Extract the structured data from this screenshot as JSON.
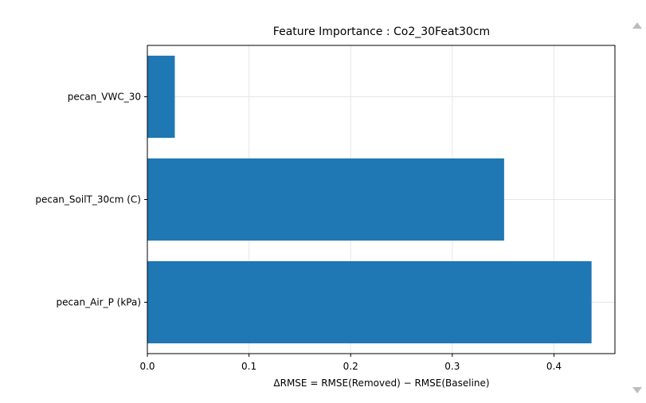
{
  "chart_data": {
    "type": "bar",
    "orientation": "horizontal",
    "title": "Feature Importance : Co2_30Feat30cm",
    "xlabel": "ΔRMSE = RMSE(Removed) − RMSE(Baseline)",
    "ylabel": "",
    "categories": [
      "pecan_VWC_30",
      "pecan_SoilT_30cm (C)",
      "pecan_Air_P (kPa)"
    ],
    "values": [
      0.027,
      0.351,
      0.437
    ],
    "xlim": [
      0.0,
      0.46
    ],
    "xticks": [
      0.0,
      0.1,
      0.2,
      0.3,
      0.4
    ],
    "xtick_labels": [
      "0.0",
      "0.1",
      "0.2",
      "0.3",
      "0.4"
    ],
    "grid": true,
    "bar_color": "#1f77b4"
  }
}
